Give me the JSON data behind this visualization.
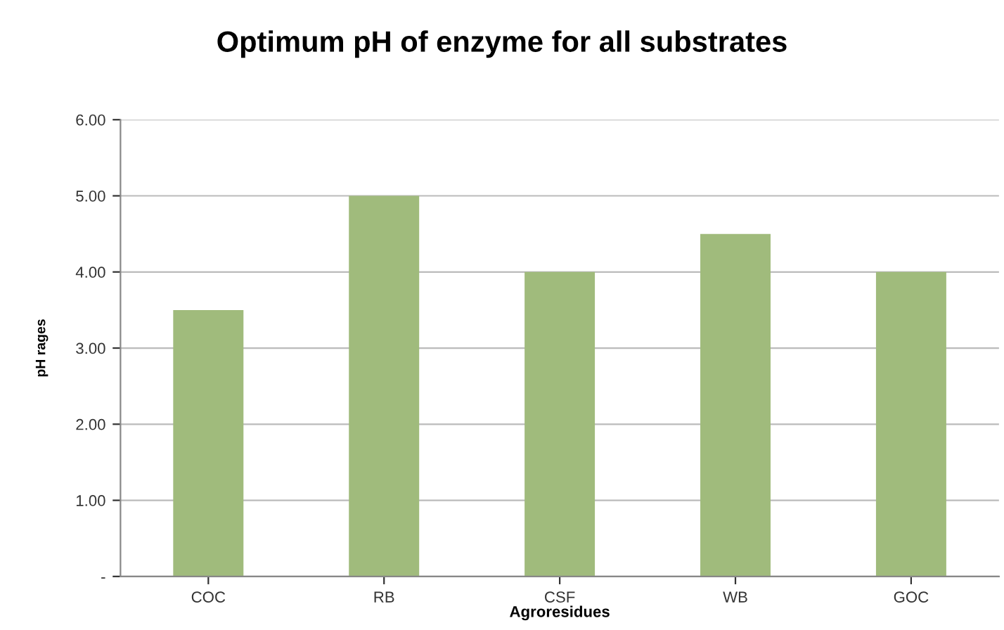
{
  "chart_data": {
    "type": "bar",
    "title": "Optimum pH of enzyme for all substrates",
    "xlabel": "Agroresidues",
    "ylabel": "pH rages",
    "categories": [
      "COC",
      "RB",
      "CSF",
      "WB",
      "GOC"
    ],
    "values": [
      3.5,
      5.0,
      4.0,
      4.5,
      4.0
    ],
    "color": "#a0bb7c",
    "ylim": [
      0,
      6
    ],
    "yticks": [
      {
        "value": 0,
        "label": "-"
      },
      {
        "value": 1,
        "label": "1.00"
      },
      {
        "value": 2,
        "label": "2.00"
      },
      {
        "value": 3,
        "label": "3.00"
      },
      {
        "value": 4,
        "label": "4.00"
      },
      {
        "value": 5,
        "label": "5.00"
      },
      {
        "value": 6,
        "label": "6.00"
      }
    ],
    "grid": "y",
    "legend": false
  }
}
